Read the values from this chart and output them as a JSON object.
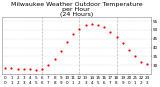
{
  "title": "Milwaukee Weather Outdoor Temperature\nper Hour\n(24 Hours)",
  "hours": [
    0,
    1,
    2,
    3,
    4,
    5,
    6,
    7,
    8,
    9,
    10,
    11,
    12,
    13,
    14,
    15,
    16,
    17,
    18,
    19,
    20,
    21,
    22,
    23
  ],
  "temps": [
    28.5,
    28.3,
    28.1,
    27.9,
    27.7,
    27.6,
    27.8,
    30.0,
    33.5,
    38.0,
    43.0,
    47.5,
    50.5,
    52.5,
    53.5,
    53.0,
    51.5,
    49.0,
    46.0,
    42.5,
    38.5,
    35.0,
    32.0,
    30.5
  ],
  "dot_color": "#ff0000",
  "bg_color": "#ffffff",
  "grid_color": "#bbbbbb",
  "vline_positions": [
    6,
    12,
    18
  ],
  "ylim": [
    25,
    57
  ],
  "xlim": [
    -0.5,
    23.5
  ],
  "yticks": [
    30,
    35,
    40,
    45,
    50,
    55
  ],
  "ytick_labels": [
    "30",
    "35",
    "40",
    "45",
    "50",
    "55"
  ],
  "xtick_labels_top": [
    "0",
    "1",
    "2",
    "3",
    "4",
    "5",
    "6",
    "7",
    "8",
    "9",
    "10",
    "11",
    "12",
    "13",
    "14",
    "15",
    "16",
    "17",
    "18",
    "19",
    "20",
    "21",
    "22",
    "23"
  ],
  "xtick_labels_bot": [
    "0",
    "1",
    "2",
    "3",
    "4",
    "5",
    "6",
    "7",
    "8",
    "9",
    "0",
    "1",
    "2",
    "3",
    "4",
    "5",
    "6",
    "7",
    "8",
    "9",
    "0",
    "1",
    "2",
    "3"
  ],
  "title_fontsize": 4.5,
  "tick_fontsize": 3.0,
  "dot_size": 2.5
}
